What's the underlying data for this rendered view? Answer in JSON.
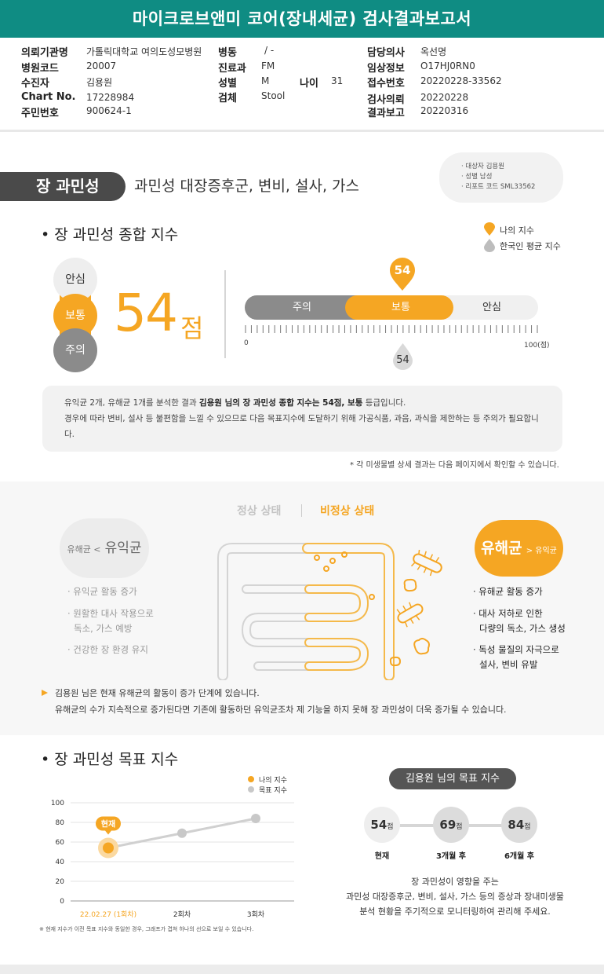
{
  "header": {
    "title": "마이크로브앤미 코어(장내세균) 검사결과보고서"
  },
  "info": {
    "hospital_label": "의뢰기관명",
    "hospital": "가톨릭대학교 여의도성모병원",
    "ward_label": "병동",
    "ward": "/ -",
    "doctor_label": "담당의사",
    "doctor": "옥선명",
    "hospital_code_label": "병원코드",
    "hospital_code": "20007",
    "dept_label": "진료과",
    "dept": "FM",
    "clinical_label": "임상정보",
    "clinical": "O17HJ0RN0",
    "patient_label": "수진자",
    "patient": "김용원",
    "sex_label": "성별",
    "sex": "M",
    "age_label": "나이",
    "age": "31",
    "receipt_label": "접수번호",
    "receipt": "20220228-33562",
    "chart_label": "Chart No.",
    "chart": "17228984",
    "specimen_label": "검체",
    "specimen": "Stool",
    "request_label": "검사의뢰",
    "request": "20220228",
    "resident_label": "주민번호",
    "resident": "900624-1",
    "report_label": "결과보고",
    "report": "20220316"
  },
  "category": {
    "pill": "장 과민성",
    "desc": "과민성 대장증후군, 변비, 설사, 가스",
    "meta": [
      "· 대상자 김용원",
      "· 성별 남성",
      "· 리포트 코드 SML33562"
    ]
  },
  "score_section": {
    "title": "장 과민성 종합 지수",
    "legend_mine": "나의 지수",
    "legend_avg": "한국인 평균 지수",
    "levels": [
      "안심",
      "보통",
      "주의"
    ],
    "score": "54",
    "score_unit": "점",
    "bar_labels": {
      "caution": "주의",
      "normal": "보통",
      "safe": "안심"
    },
    "my_marker": "54",
    "avg_marker": "54",
    "axis_min": "0",
    "axis_max": "100(점)",
    "summary_p1": "유익균 2개, 유해균 1개를 분석한 결과 ",
    "summary_bold1": "김용원 님의 장 과민성 종합 지수는 54점, 보통",
    "summary_p2": " 등급입니다.",
    "summary_line2": "경우에 따라 변비, 설사 등 불편함을 느낄 수 있으므로 다음 목표지수에 도달하기 위해 가공식품, 과음, 과식을 제한하는 등 주의가 필요합니",
    "summary_line3": "다.",
    "footnote": "* 각 미생물별 상세 결과는 다음 페이지에서 확인할 수 있습니다."
  },
  "status_section": {
    "tab_normal": "정상 상태",
    "tab_abnormal": "비정상 상태",
    "good_small": "유해균 <",
    "good_big": "유익균",
    "bad_big": "유해균",
    "bad_small": "> 유익균",
    "left_items": [
      "· 유익균 활동 증가",
      "· 원활한 대사 작용으로",
      "독소, 가스 예방",
      "· 건강한 장 환경 유지"
    ],
    "right_items": [
      "· 유해균 활동 증가",
      "· 대사 저하로 인한",
      "다량의 독소, 가스 생성",
      "· 독성 물질의 자극으로",
      "설사, 변비 유발"
    ],
    "note_line1": "김용원 님은 현재 유해균의 활동이 증가 단계에 있습니다.",
    "note_line2": "유해균의 수가 지속적으로 증가된다면 기존에 활동하던 유익균조차 제 기능을 하지 못해 장 과민성이 더욱 증가될 수 있습니다."
  },
  "goal_section": {
    "title": "장 과민성 목표 지수",
    "legend_mine": "나의 지수",
    "legend_goal": "목표 지수",
    "current_tag": "현재",
    "chart_note": "※ 현재 지수가 이전 목표 지수와 동일한 경우, 그래프가 겹쳐 하나의 선으로 보일 수 있습니다.",
    "name_pill": "김용원 님의 목표 지수",
    "goals": [
      {
        "value": "54",
        "unit": "점",
        "label": "현재"
      },
      {
        "value": "69",
        "unit": "점",
        "label": "3개월 후"
      },
      {
        "value": "84",
        "unit": "점",
        "label": "6개월 후"
      }
    ],
    "desc_lines": [
      "장 과민성이 영향을 주는",
      "과민성 대장증후군, 변비, 설사, 가스 등의 증상과 장내미생물",
      "분석 현황을 주기적으로 모니터링하여 관리해 주세요."
    ]
  },
  "colors": {
    "header": "#0f8c83",
    "accent": "#f5a623",
    "gray": "#8b8b8b"
  },
  "chart_data": {
    "type": "line",
    "categories": [
      "22.02.27 (1회차)",
      "2회차",
      "3회차"
    ],
    "series": [
      {
        "name": "나의 지수",
        "values": [
          54,
          null,
          null
        ]
      },
      {
        "name": "목표 지수",
        "values": [
          54,
          69,
          84
        ]
      }
    ],
    "yticks": [
      "100",
      "80",
      "60",
      "40",
      "20",
      "0"
    ],
    "ylim": [
      0,
      100
    ],
    "grid": true,
    "legend": "top-right"
  }
}
